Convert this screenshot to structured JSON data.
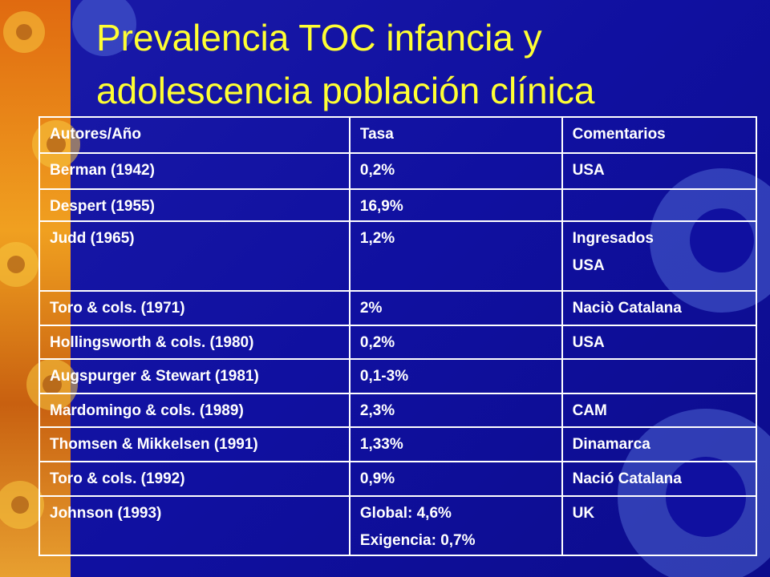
{
  "title": [
    "Prevalencia TOC infancia y",
    "adolescencia población clínica"
  ],
  "table": {
    "header": [
      "Autores/Año",
      "Tasa",
      "Comentarios"
    ],
    "rows": [
      [
        "Berman (1942)",
        "0,2%",
        "USA"
      ],
      [
        "Despert (1955)",
        "16,9%",
        null
      ],
      [
        "Judd (1965)",
        "1,2%",
        [
          "Ingresados",
          "USA"
        ]
      ],
      [
        "Toro & cols. (1971)",
        "2%",
        "Naciò Catalana"
      ],
      [
        "Hollingsworth & cols. (1980)",
        "0,2%",
        "USA"
      ],
      [
        "Augspurger & Stewart (1981)",
        "0,1-3%",
        null
      ],
      [
        "Mardomingo & cols. (1989)",
        "2,3%",
        "CAM"
      ],
      [
        "Thomsen & Mikkelsen (1991)",
        "1,33%",
        "Dinamarca"
      ],
      [
        "Toro & cols. (1992)",
        "0,9%",
        "Nació Catalana"
      ],
      [
        "Johnson (1993)",
        [
          "Global: 4,6%",
          "Exigencia: 0,7%"
        ],
        "UK"
      ]
    ]
  }
}
